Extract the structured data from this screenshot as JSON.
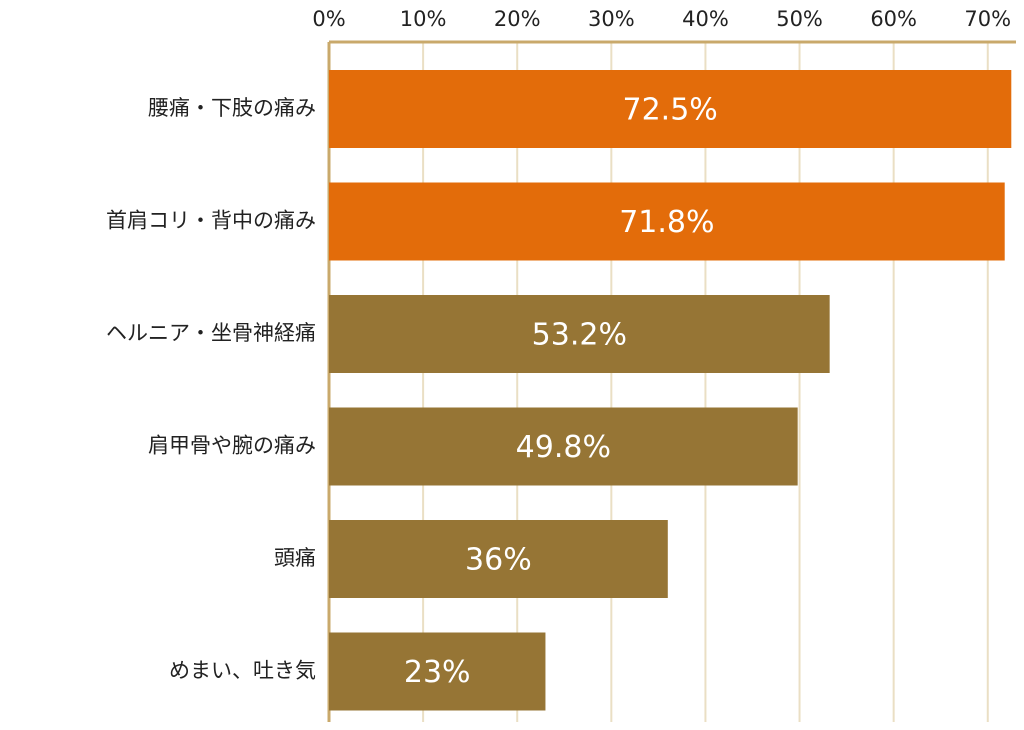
{
  "chart_data": {
    "type": "bar",
    "orientation": "horizontal",
    "categories": [
      "腰痛・下肢の痛み",
      "首肩コリ・背中の痛み",
      "ヘルニア・坐骨神経痛",
      "肩甲骨や腕の痛み",
      "頭痛",
      "めまい、吐き気"
    ],
    "values": [
      72.5,
      71.8,
      53.2,
      49.8,
      36,
      23
    ],
    "value_labels": [
      "72.5%",
      "71.8%",
      "53.2%",
      "49.8%",
      "36%",
      "23%"
    ],
    "colors": [
      "#e36c0a",
      "#e36c0a",
      "#967535",
      "#967535",
      "#967535",
      "#967535"
    ],
    "xlim": [
      0,
      73
    ],
    "xticks": [
      {
        "value": 0,
        "label": "0%"
      },
      {
        "value": 10,
        "label": "10%"
      },
      {
        "value": 20,
        "label": "20%"
      },
      {
        "value": 30,
        "label": "30%"
      },
      {
        "value": 40,
        "label": "40%"
      },
      {
        "value": 50,
        "label": "50%"
      },
      {
        "value": 60,
        "label": "60%"
      },
      {
        "value": 70,
        "label": "70%"
      }
    ],
    "grid": true
  }
}
